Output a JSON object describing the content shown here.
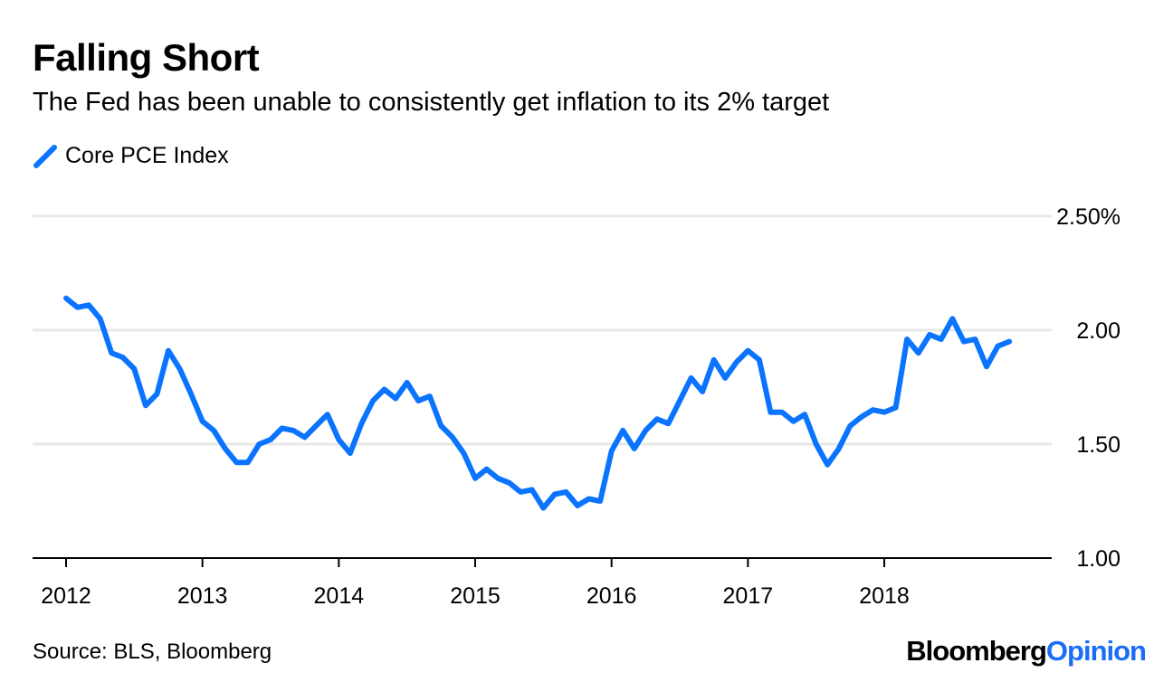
{
  "chart_data": {
    "type": "line",
    "title": "Falling Short",
    "subtitle": "The Fed has been unable to consistently get inflation to its 2% target",
    "xlabel": "",
    "ylabel": "",
    "ylim": [
      1.0,
      2.5
    ],
    "yticks": [
      "2.50%",
      "2.00",
      "1.50",
      "1.00"
    ],
    "ytick_values": [
      2.5,
      2.0,
      1.5,
      1.0
    ],
    "xticks": [
      "2012",
      "2013",
      "2014",
      "2015",
      "2016",
      "2017",
      "2018"
    ],
    "grid": true,
    "legend_position": "top-left",
    "x_start": "2012-01",
    "x_frequency": "monthly",
    "series": [
      {
        "name": "Core PCE Index",
        "color": "#0a74ff",
        "values": [
          2.14,
          2.1,
          2.11,
          2.05,
          1.9,
          1.88,
          1.83,
          1.67,
          1.72,
          1.91,
          1.83,
          1.72,
          1.6,
          1.56,
          1.48,
          1.42,
          1.42,
          1.5,
          1.52,
          1.57,
          1.56,
          1.53,
          1.58,
          1.63,
          1.52,
          1.46,
          1.59,
          1.69,
          1.74,
          1.7,
          1.77,
          1.69,
          1.71,
          1.58,
          1.53,
          1.46,
          1.35,
          1.39,
          1.35,
          1.33,
          1.29,
          1.3,
          1.22,
          1.28,
          1.29,
          1.23,
          1.26,
          1.25,
          1.47,
          1.56,
          1.48,
          1.56,
          1.61,
          1.59,
          1.69,
          1.79,
          1.73,
          1.87,
          1.79,
          1.86,
          1.91,
          1.87,
          1.64,
          1.64,
          1.6,
          1.63,
          1.5,
          1.41,
          1.48,
          1.58,
          1.62,
          1.65,
          1.64,
          1.66,
          1.96,
          1.9,
          1.98,
          1.96,
          2.05,
          1.95,
          1.96,
          1.84,
          1.93,
          1.95
        ]
      }
    ]
  },
  "source": "Source: BLS, Bloomberg",
  "logo": {
    "part1": "Bloomberg",
    "part2": "Opinion"
  }
}
